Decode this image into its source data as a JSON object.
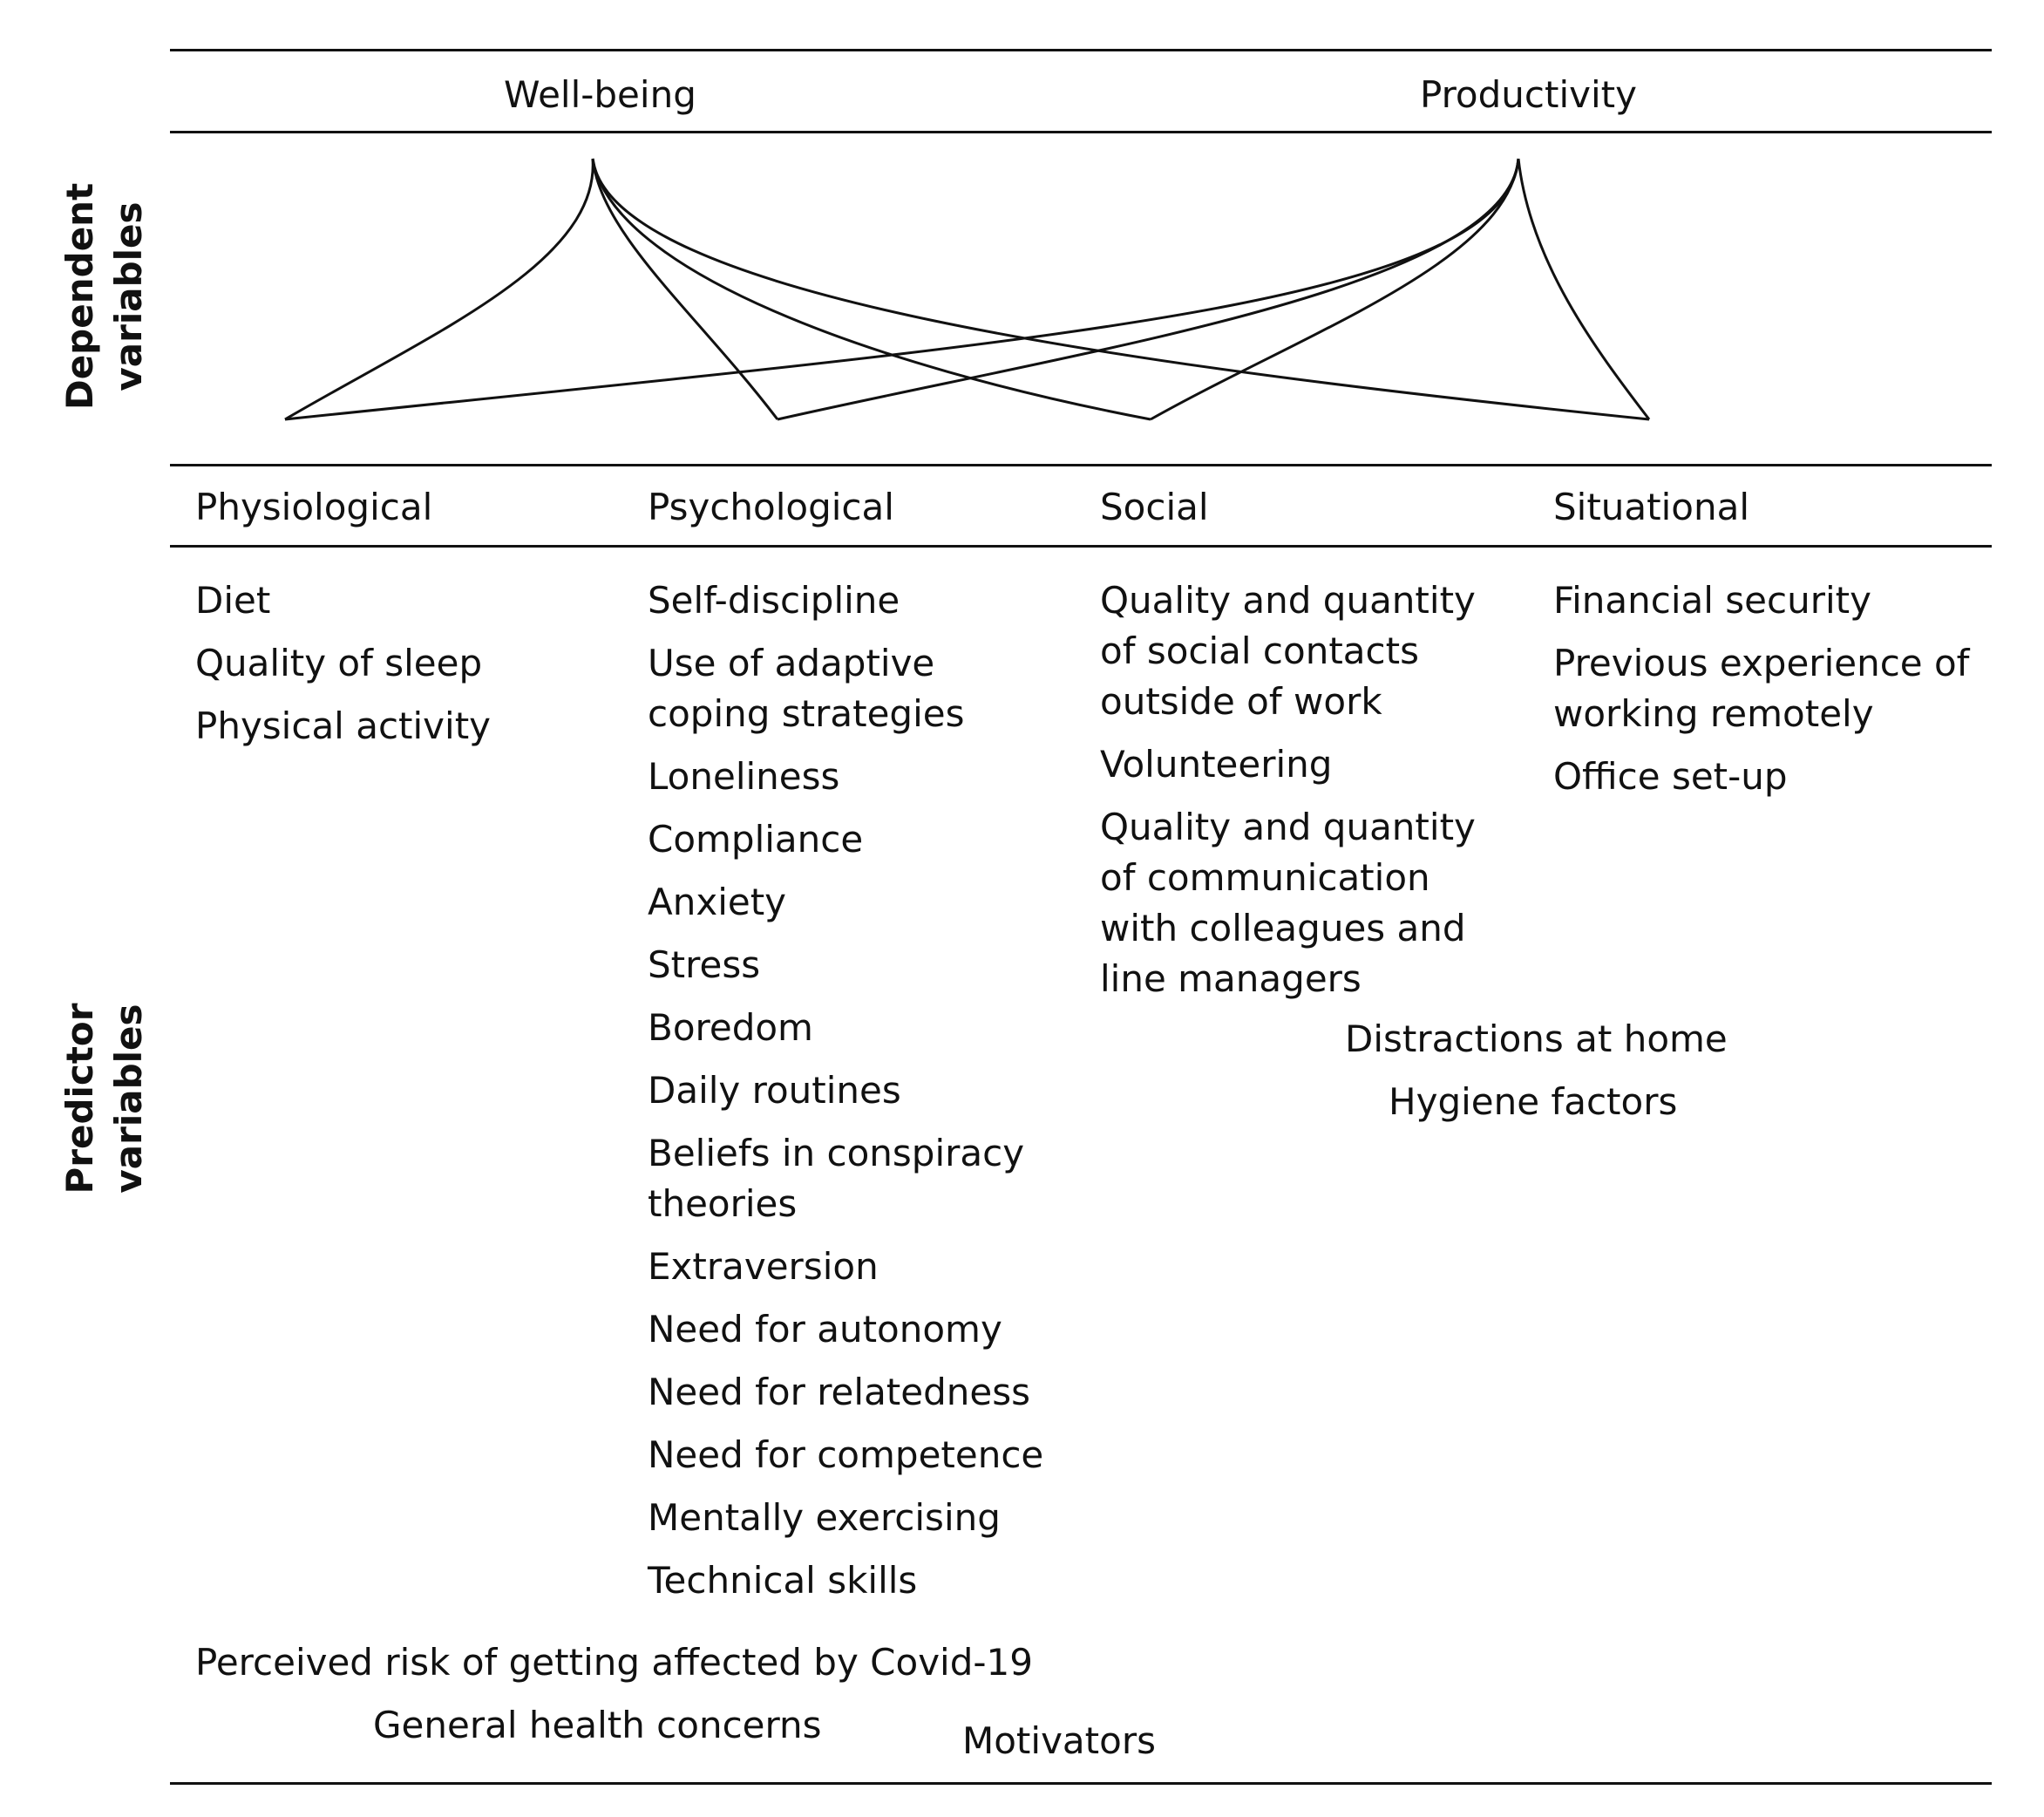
{
  "dependent": {
    "label_line1": "Dependent",
    "label_line2": "variables",
    "wellbeing": "Well-being",
    "productivity": "Productivity"
  },
  "predictor": {
    "label_line1": "Predictor",
    "label_line2": "variables"
  },
  "categories": {
    "physiological": "Physiological",
    "psychological": "Psychological",
    "social": "Social",
    "situational": "Situational"
  },
  "physiological_items": [
    "Diet",
    "Quality of sleep",
    "Physical activity"
  ],
  "psychological_items": [
    "Self-discipline",
    [
      "Use of adaptive",
      "coping strategies"
    ],
    "Loneliness",
    "Compliance",
    "Anxiety",
    "Stress",
    "Boredom",
    "Daily routines",
    [
      "Beliefs in conspiracy",
      "theories"
    ],
    "Extraversion",
    "Need for autonomy",
    "Need for relatedness",
    "Need for competence",
    "Mentally exercising",
    "Technical skills"
  ],
  "social_items": [
    [
      "Quality and quantity",
      "of social contacts",
      "outside of work"
    ],
    "Volunteering",
    [
      "Quality and quantity",
      "of communication",
      "with colleagues and",
      "line managers"
    ]
  ],
  "situational_items": [
    "Financial security",
    [
      "Previous experience of",
      "working remotely"
    ],
    "Office set-up"
  ],
  "shared": {
    "distractions": "Distractions at home",
    "hygiene": "Hygiene factors",
    "perceived_risk": "Perceived risk of getting affected by Covid-19",
    "health_concerns": "General health concerns",
    "motivators": "Motivators"
  }
}
